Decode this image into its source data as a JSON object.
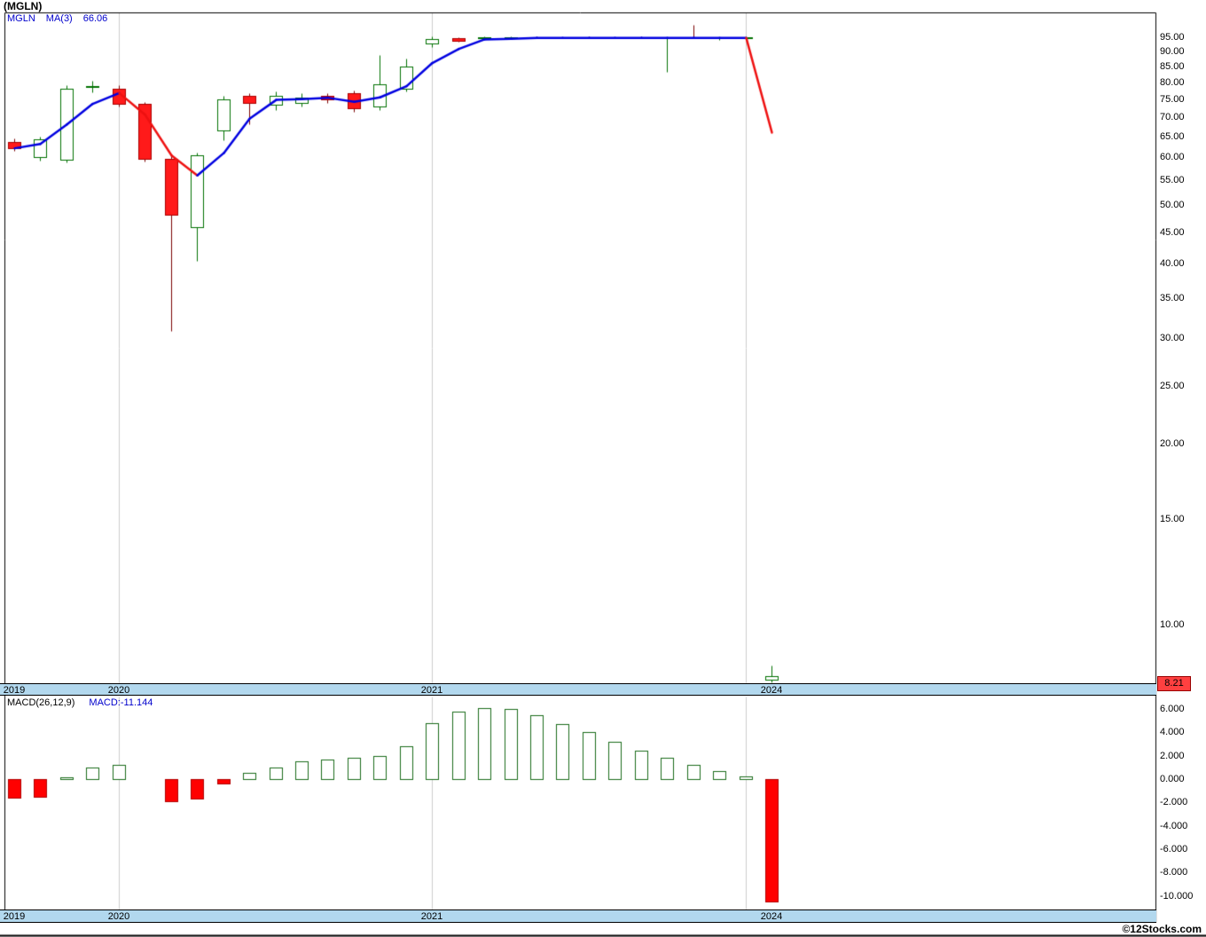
{
  "title": "(MGLN)",
  "legend": {
    "symbol": "MGLN",
    "ma_label": "MA(3)",
    "ma_value": "66.06"
  },
  "price_tag": {
    "value": "8.21"
  },
  "copyright": "©12Stocks.com",
  "colors": {
    "up": "#007000",
    "up_fill": "#ffffff",
    "down": "#aa0000",
    "down_fill": "#ff1a1a",
    "down_wick": "#7a0000",
    "ma_up": "#0000e0",
    "ma_down": "#ee1111",
    "grid": "#cccccc",
    "band_bg": "#b2d8ee",
    "hist_pos_stroke": "#1a6b1a",
    "hist_neg": "#ff0000",
    "hist_neg_stroke": "#b00000",
    "tag_bg": "#ff4040",
    "tag_border": "#990000"
  },
  "chart_data": {
    "type": "candlestick",
    "title": "(MGLN)",
    "x_unit": "month",
    "main": {
      "scale": "log",
      "ylim": [
        8.0,
        104.5
      ],
      "yticks": [
        95,
        90,
        85,
        80,
        75,
        70,
        65,
        60,
        55,
        50,
        45,
        40,
        35,
        30,
        25,
        20,
        15,
        10
      ],
      "tick_decimals": 2,
      "ma_period": 3,
      "ma_last": 66.06,
      "last_price": 8.21,
      "candle_format": [
        "open",
        "high",
        "low",
        "close"
      ],
      "candles": [
        [
          63.6,
          64.5,
          61.5,
          62.2
        ],
        [
          60.1,
          65.0,
          59.3,
          64.3
        ],
        [
          59.5,
          79.2,
          58.8,
          78.0
        ],
        [
          78.6,
          80.4,
          77.0,
          78.9
        ],
        [
          78.0,
          79.0,
          72.9,
          73.7
        ],
        [
          73.7,
          74.2,
          59.0,
          59.7
        ],
        [
          59.7,
          60.4,
          30.8,
          48.1
        ],
        [
          45.9,
          61.0,
          40.4,
          60.4
        ],
        [
          66.4,
          76.0,
          64.0,
          74.8
        ],
        [
          75.8,
          76.6,
          68.0,
          73.8
        ],
        [
          73.3,
          77.3,
          71.8,
          76.0
        ],
        [
          74.0,
          76.6,
          73.0,
          75.5
        ],
        [
          75.8,
          76.8,
          74.0,
          75.0
        ],
        [
          76.8,
          77.6,
          71.4,
          72.4
        ],
        [
          72.9,
          88.9,
          71.8,
          79.4
        ],
        [
          78.0,
          87.6,
          77.1,
          84.9
        ],
        [
          92.8,
          95.3,
          91.5,
          94.4
        ],
        [
          94.7,
          95.1,
          93.4,
          93.8
        ],
        [
          94.9,
          95.3,
          94.5,
          95.0
        ],
        [
          94.9,
          95.2,
          94.6,
          95.0
        ],
        [
          95.0,
          95.2,
          94.7,
          94.9
        ],
        [
          94.9,
          95.1,
          94.7,
          95.0
        ],
        [
          95.0,
          95.2,
          94.8,
          94.9
        ],
        [
          94.9,
          95.1,
          94.7,
          95.0
        ],
        [
          95.0,
          95.2,
          94.8,
          94.9
        ],
        [
          94.9,
          95.1,
          83.3,
          95.0
        ],
        [
          95.0,
          99.6,
          94.6,
          94.9
        ],
        [
          94.9,
          95.1,
          94.2,
          94.97
        ],
        [
          94.97,
          95.2,
          94.7,
          95.0
        ],
        [
          8.1,
          8.55,
          8.02,
          8.21
        ]
      ]
    },
    "macd": {
      "label": "MACD(26,12,9)",
      "value_label": "MACD:-11.144",
      "value": -11.144,
      "scale": "linear",
      "ylim": [
        -11.17,
        7.07
      ],
      "yticks": [
        6,
        4,
        2,
        0,
        -2,
        -4,
        -6,
        -8,
        -10
      ],
      "tick_decimals": 3,
      "histogram": [
        -1.6,
        -1.5,
        0.15,
        1.0,
        1.2,
        0,
        -1.9,
        -1.7,
        -0.35,
        0.5,
        1.0,
        1.5,
        1.7,
        1.8,
        2.0,
        2.8,
        4.8,
        5.8,
        6.1,
        6.0,
        5.5,
        4.7,
        4.0,
        3.2,
        2.4,
        1.8,
        1.2,
        0.7,
        0.25,
        -10.5
      ]
    },
    "x_labels": [
      {
        "index": 0,
        "label": "2019"
      },
      {
        "index": 4,
        "label": "2020"
      },
      {
        "index": 16,
        "label": "2021"
      },
      {
        "index": 29,
        "label": "2024"
      }
    ],
    "grid_indices": [
      4,
      16,
      28
    ]
  }
}
